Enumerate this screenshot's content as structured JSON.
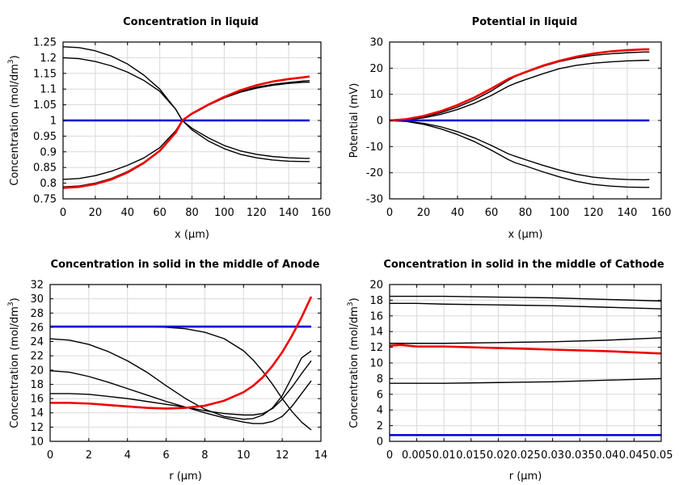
{
  "chart_data": [
    {
      "type": "line",
      "title": "Concentration in liquid",
      "xlabel": "x (µm)",
      "ylabel_main": "Concentration (mol/dm",
      "ylabel_sup": "3",
      "ylabel_end": ")",
      "xlim": [
        0,
        160
      ],
      "ylim": [
        0.75,
        1.25
      ],
      "xticks": [
        "0",
        "20",
        "40",
        "60",
        "80",
        "100",
        "120",
        "140",
        "160"
      ],
      "yticks": [
        "0.75",
        "0.8",
        "0.85",
        "0.9",
        "0.95",
        "1",
        "1.05",
        "1.1",
        "1.15",
        "1.2",
        "1.25"
      ],
      "series": [
        {
          "name": "black-1",
          "color": "#000000",
          "x": [
            0,
            10,
            20,
            30,
            40,
            50,
            60,
            70,
            74,
            80,
            90,
            100,
            110,
            120,
            130,
            140,
            150,
            153
          ],
          "y": [
            1.235,
            1.232,
            1.222,
            1.205,
            1.18,
            1.145,
            1.1,
            1.035,
            1.0,
            0.975,
            0.945,
            0.92,
            0.903,
            0.892,
            0.885,
            0.881,
            0.879,
            0.879
          ]
        },
        {
          "name": "black-2",
          "color": "#000000",
          "x": [
            0,
            10,
            20,
            30,
            40,
            50,
            60,
            70,
            74,
            80,
            90,
            100,
            110,
            120,
            130,
            140,
            150,
            153
          ],
          "y": [
            1.2,
            1.197,
            1.188,
            1.174,
            1.154,
            1.128,
            1.093,
            1.035,
            1.0,
            0.97,
            0.935,
            0.91,
            0.892,
            0.881,
            0.874,
            0.87,
            0.869,
            0.869
          ]
        },
        {
          "name": "black-3",
          "color": "#000000",
          "x": [
            0,
            10,
            20,
            30,
            40,
            50,
            60,
            70,
            74,
            80,
            90,
            100,
            110,
            120,
            130,
            140,
            150,
            153
          ],
          "y": [
            0.812,
            0.815,
            0.824,
            0.838,
            0.857,
            0.88,
            0.913,
            0.968,
            1.0,
            1.02,
            1.048,
            1.072,
            1.09,
            1.103,
            1.112,
            1.118,
            1.122,
            1.122
          ]
        },
        {
          "name": "black-4",
          "color": "#000000",
          "x": [
            0,
            10,
            20,
            30,
            40,
            50,
            60,
            70,
            74,
            80,
            90,
            100,
            110,
            120,
            130,
            140,
            150,
            153
          ],
          "y": [
            0.788,
            0.791,
            0.8,
            0.815,
            0.837,
            0.866,
            0.904,
            0.963,
            1.0,
            1.022,
            1.05,
            1.073,
            1.092,
            1.106,
            1.115,
            1.121,
            1.126,
            1.127
          ]
        },
        {
          "name": "blue",
          "color": "#0000dd",
          "x": [
            0,
            153
          ],
          "y": [
            1.0,
            1.0
          ]
        },
        {
          "name": "red",
          "color": "#ee0000",
          "x": [
            0,
            10,
            20,
            30,
            40,
            50,
            60,
            70,
            74,
            80,
            90,
            100,
            110,
            120,
            130,
            140,
            150,
            153
          ],
          "y": [
            0.785,
            0.788,
            0.797,
            0.812,
            0.834,
            0.864,
            0.903,
            0.962,
            1.0,
            1.022,
            1.05,
            1.075,
            1.096,
            1.112,
            1.124,
            1.132,
            1.138,
            1.14
          ]
        }
      ]
    },
    {
      "type": "line",
      "title": "Potential in liquid",
      "xlabel": "x (µm)",
      "ylabel_main": "Potential (mV)",
      "ylabel_sup": "",
      "ylabel_end": "",
      "xlim": [
        0,
        160
      ],
      "ylim": [
        -30,
        30
      ],
      "xticks": [
        "0",
        "20",
        "40",
        "60",
        "80",
        "100",
        "120",
        "140",
        "160"
      ],
      "yticks": [
        "-30",
        "-20",
        "-10",
        "0",
        "10",
        "20",
        "30"
      ],
      "series": [
        {
          "name": "black-1",
          "color": "#000000",
          "x": [
            0,
            10,
            20,
            30,
            40,
            50,
            60,
            70,
            74,
            80,
            90,
            100,
            110,
            120,
            130,
            140,
            150,
            153
          ],
          "y": [
            0,
            0.3,
            1.3,
            2.9,
            5.1,
            7.9,
            11.3,
            15.4,
            16.8,
            18.3,
            20.6,
            22.5,
            23.9,
            24.9,
            25.5,
            25.9,
            26.2,
            26.2
          ]
        },
        {
          "name": "black-2",
          "color": "#000000",
          "x": [
            0,
            10,
            20,
            30,
            40,
            50,
            60,
            70,
            74,
            80,
            90,
            100,
            110,
            120,
            130,
            140,
            150,
            153
          ],
          "y": [
            0,
            0.2,
            1.0,
            2.3,
            4.2,
            6.6,
            9.6,
            13.1,
            14.2,
            15.6,
            17.8,
            19.8,
            21.1,
            21.9,
            22.4,
            22.8,
            23.0,
            23.0
          ]
        },
        {
          "name": "black-3",
          "color": "#000000",
          "x": [
            0,
            10,
            20,
            30,
            40,
            50,
            60,
            70,
            74,
            80,
            90,
            100,
            110,
            120,
            130,
            140,
            150,
            153
          ],
          "y": [
            0,
            -0.3,
            -1.1,
            -2.4,
            -4.3,
            -6.7,
            -9.6,
            -12.8,
            -13.7,
            -15.0,
            -17.1,
            -19.0,
            -20.6,
            -21.7,
            -22.3,
            -22.6,
            -22.7,
            -22.6
          ]
        },
        {
          "name": "black-4",
          "color": "#000000",
          "x": [
            0,
            10,
            20,
            30,
            40,
            50,
            60,
            70,
            74,
            80,
            90,
            100,
            110,
            120,
            130,
            140,
            150,
            153
          ],
          "y": [
            0,
            -0.4,
            -1.5,
            -3.2,
            -5.4,
            -8.1,
            -11.4,
            -15.0,
            -16.2,
            -17.4,
            -19.6,
            -21.6,
            -23.3,
            -24.5,
            -25.1,
            -25.5,
            -25.6,
            -25.6
          ]
        },
        {
          "name": "blue",
          "color": "#0000dd",
          "x": [
            0,
            153
          ],
          "y": [
            0,
            0
          ]
        },
        {
          "name": "red",
          "color": "#ee0000",
          "x": [
            0,
            10,
            20,
            30,
            40,
            50,
            60,
            70,
            74,
            80,
            90,
            100,
            110,
            120,
            130,
            140,
            150,
            153
          ],
          "y": [
            0,
            0.5,
            1.7,
            3.5,
            5.9,
            8.8,
            12.2,
            15.9,
            17.0,
            18.5,
            20.9,
            22.8,
            24.4,
            25.6,
            26.4,
            26.9,
            27.2,
            27.2
          ]
        }
      ]
    },
    {
      "type": "line",
      "title": "Concentration in solid in the middle of Anode",
      "xlabel": "r (µm)",
      "ylabel_main": "Concentration (mol/dm",
      "ylabel_sup": "3",
      "ylabel_end": ")",
      "xlim": [
        0,
        14
      ],
      "ylim": [
        10,
        32
      ],
      "xticks": [
        "0",
        "2",
        "4",
        "6",
        "8",
        "10",
        "12",
        "14"
      ],
      "yticks": [
        "10",
        "12",
        "14",
        "16",
        "18",
        "20",
        "22",
        "24",
        "26",
        "28",
        "30",
        "32"
      ],
      "series": [
        {
          "name": "black-1",
          "color": "#000000",
          "x": [
            0,
            1,
            2,
            3,
            4,
            5,
            6,
            7,
            8,
            9,
            10,
            10.5,
            11,
            11.5,
            12,
            12.5,
            13,
            13.5
          ],
          "y": [
            26.1,
            26.1,
            26.1,
            26.1,
            26.1,
            26.1,
            26.0,
            25.8,
            25.3,
            24.4,
            22.7,
            21.4,
            19.8,
            18.0,
            16.0,
            14.2,
            12.7,
            11.6
          ]
        },
        {
          "name": "black-2",
          "color": "#000000",
          "x": [
            0,
            1,
            2,
            3,
            4,
            5,
            6,
            7,
            8,
            9,
            10,
            10.5,
            11,
            11.5,
            12,
            12.5,
            13,
            13.5
          ],
          "y": [
            24.4,
            24.2,
            23.6,
            22.6,
            21.3,
            19.7,
            17.8,
            16.0,
            14.5,
            13.5,
            13.1,
            13.2,
            13.7,
            14.7,
            16.4,
            19.0,
            21.7,
            22.7
          ]
        },
        {
          "name": "black-3",
          "color": "#000000",
          "x": [
            0,
            1,
            2,
            3,
            4,
            5,
            6,
            7,
            8,
            9,
            10,
            10.5,
            11,
            11.5,
            12,
            12.5,
            13,
            13.5
          ],
          "y": [
            19.9,
            19.7,
            19.1,
            18.3,
            17.4,
            16.5,
            15.6,
            14.8,
            14.0,
            13.3,
            12.7,
            12.5,
            12.5,
            12.8,
            13.5,
            14.9,
            16.7,
            18.5
          ]
        },
        {
          "name": "black-4",
          "color": "#000000",
          "x": [
            0,
            1,
            2,
            3,
            4,
            5,
            6,
            7,
            8,
            9,
            10,
            10.5,
            11,
            11.5,
            12,
            12.5,
            13,
            13.5
          ],
          "y": [
            16.7,
            16.7,
            16.6,
            16.3,
            16.0,
            15.6,
            15.2,
            14.8,
            14.3,
            13.9,
            13.7,
            13.7,
            13.9,
            14.6,
            15.9,
            17.6,
            19.5,
            21.3
          ]
        },
        {
          "name": "blue",
          "color": "#0000dd",
          "x": [
            0,
            13.5
          ],
          "y": [
            26.1,
            26.1
          ]
        },
        {
          "name": "red",
          "color": "#ee0000",
          "x": [
            0,
            1,
            2,
            3,
            4,
            5,
            6,
            7,
            8,
            9,
            10,
            10.5,
            11,
            11.5,
            12,
            12.5,
            13,
            13.5
          ],
          "y": [
            15.4,
            15.4,
            15.3,
            15.1,
            14.9,
            14.7,
            14.6,
            14.7,
            15.0,
            15.7,
            16.9,
            17.8,
            19.0,
            20.6,
            22.5,
            24.8,
            27.4,
            30.3
          ]
        }
      ]
    },
    {
      "type": "line",
      "title": "Concentration in solid in the middle of Cathode",
      "xlabel": "r (µm)",
      "ylabel_main": "Concentration (mol/dm",
      "ylabel_sup": "3",
      "ylabel_end": ")",
      "xlim": [
        0,
        0.05
      ],
      "ylim": [
        0,
        20
      ],
      "xticks": [
        "0",
        "0.005",
        "0.01",
        "0.015",
        "0.02",
        "0.025",
        "0.03",
        "0.035",
        "0.04",
        "0.045",
        "0.05"
      ],
      "yticks": [
        "0",
        "2",
        "4",
        "6",
        "8",
        "10",
        "12",
        "14",
        "16",
        "18",
        "20"
      ],
      "series": [
        {
          "name": "black-1",
          "color": "#000000",
          "x": [
            0,
            0.005,
            0.01,
            0.02,
            0.03,
            0.04,
            0.05
          ],
          "y": [
            18.5,
            18.5,
            18.5,
            18.4,
            18.3,
            18.1,
            17.9
          ]
        },
        {
          "name": "black-2",
          "color": "#000000",
          "x": [
            0,
            0.005,
            0.01,
            0.02,
            0.03,
            0.04,
            0.05
          ],
          "y": [
            17.6,
            17.6,
            17.5,
            17.4,
            17.3,
            17.1,
            16.9
          ]
        },
        {
          "name": "black-3",
          "color": "#000000",
          "x": [
            0,
            0.005,
            0.01,
            0.02,
            0.03,
            0.04,
            0.05
          ],
          "y": [
            12.5,
            12.5,
            12.5,
            12.6,
            12.7,
            12.9,
            13.2
          ]
        },
        {
          "name": "black-4",
          "color": "#000000",
          "x": [
            0,
            0.005,
            0.01,
            0.02,
            0.03,
            0.04,
            0.05
          ],
          "y": [
            7.4,
            7.4,
            7.4,
            7.5,
            7.6,
            7.8,
            8.0
          ]
        },
        {
          "name": "blue",
          "color": "#0000dd",
          "x": [
            0,
            0.05
          ],
          "y": [
            0.8,
            0.8
          ]
        },
        {
          "name": "red",
          "color": "#ee0000",
          "x": [
            0,
            0.002,
            0.005,
            0.01,
            0.02,
            0.03,
            0.04,
            0.05
          ],
          "y": [
            12.2,
            12.3,
            12.1,
            12.1,
            11.9,
            11.7,
            11.5,
            11.2
          ]
        }
      ]
    }
  ]
}
